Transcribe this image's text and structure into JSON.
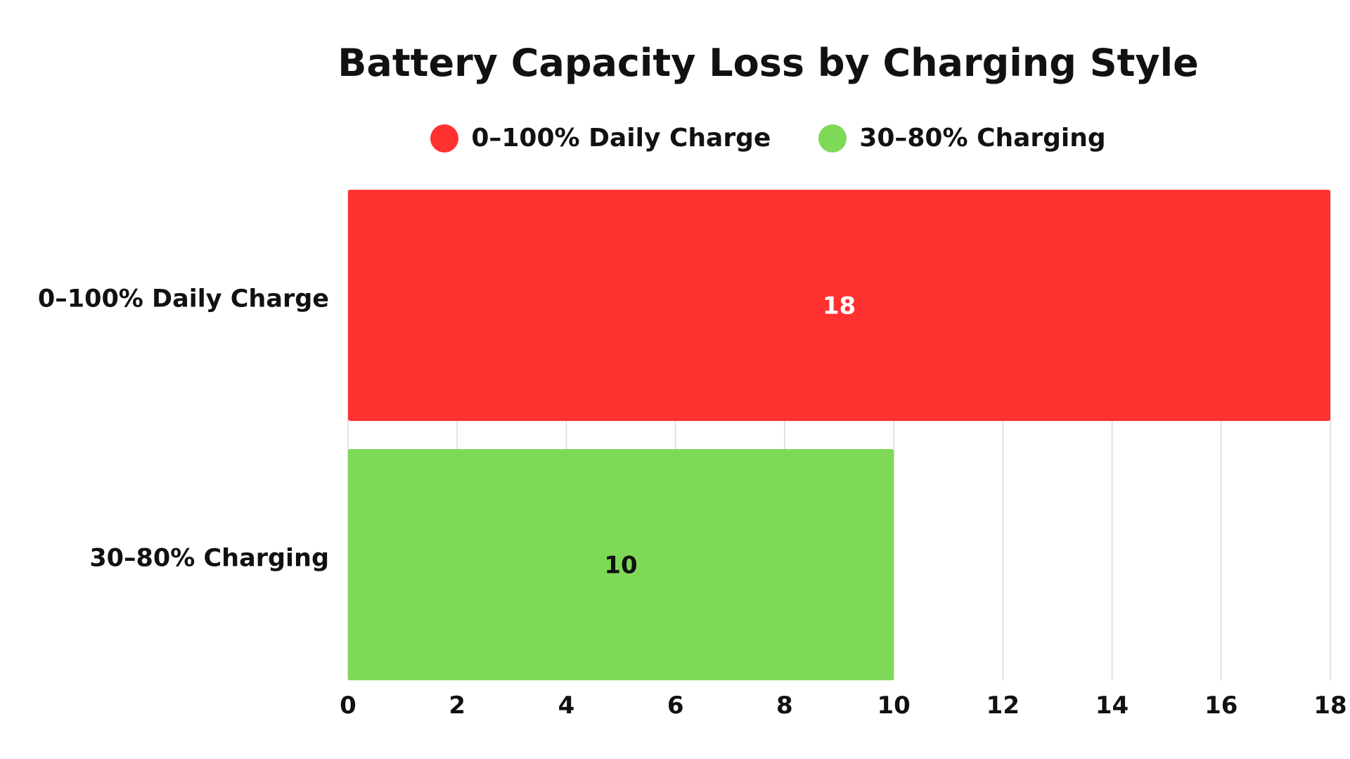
{
  "chart_data": {
    "type": "bar",
    "orientation": "horizontal",
    "title": "Battery Capacity Loss by Charging Style",
    "categories": [
      "0–100% Daily Charge",
      "30–80% Charging"
    ],
    "values": [
      18,
      10
    ],
    "colors": [
      "#ff3131",
      "#7ed957"
    ],
    "value_label_colors": [
      "#ffffff",
      "#111111"
    ],
    "legend": [
      {
        "label": "0–100% Daily Charge",
        "color": "#ff3131"
      },
      {
        "label": "30–80% Charging",
        "color": "#7ed957"
      }
    ],
    "legend_position": "top",
    "xlim": [
      0,
      18
    ],
    "xticks": [
      "0",
      "2",
      "4",
      "6",
      "8",
      "10",
      "12",
      "14",
      "16",
      "18"
    ],
    "grid": true,
    "xlabel": "",
    "ylabel": ""
  }
}
